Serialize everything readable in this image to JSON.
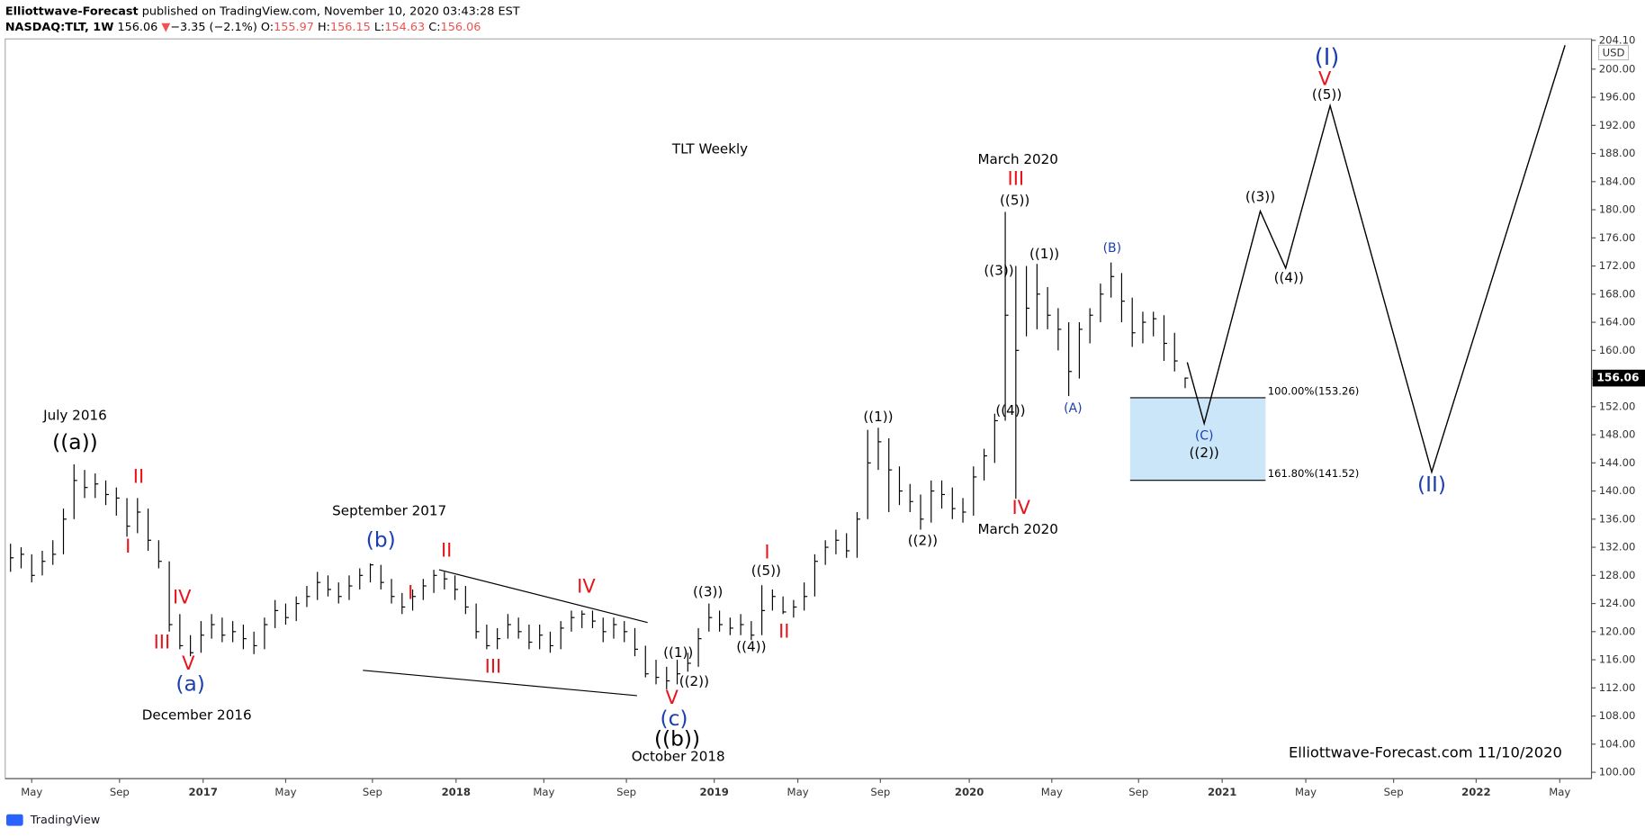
{
  "header": {
    "publisher": "Elliottwave-Forecast",
    "published": "published on TradingView.com, November 10, 2020 03:43:28 EST",
    "symbol": "NASDAQ:TLT, 1W",
    "last": "156.06",
    "arrow": "▼",
    "change": "−3.35 (−2.1%)",
    "o_label": "O:",
    "open": "155.97",
    "h_label": "H:",
    "high": "156.15",
    "l_label": "L:",
    "low": "154.63",
    "c_label": "C:",
    "close": "156.06"
  },
  "footer": {
    "brand": "TradingView"
  },
  "chart_data": {
    "type": "ohlc",
    "currency": "USD",
    "color": "#000000",
    "high": [
      132.5,
      132,
      131,
      131.5,
      133,
      137.5,
      143.8,
      143,
      142.5,
      141.5,
      140.5,
      139,
      139,
      137.5,
      133,
      130,
      122.5,
      119.5,
      121.5,
      122.5,
      122,
      121.5,
      121,
      120,
      122,
      124.5,
      124,
      125,
      126.5,
      128.5,
      128,
      127,
      128,
      129,
      129.7,
      129.5,
      127.5,
      125.5,
      126,
      127.5,
      128.8,
      128.5,
      128,
      126.5,
      124,
      121,
      120.5,
      122.5,
      122,
      121,
      121,
      120,
      121.5,
      123,
      123,
      123,
      122,
      122,
      121.5,
      120.5,
      118,
      116,
      115,
      116,
      117,
      120.5,
      124,
      123,
      122,
      122.5,
      121.5,
      126.6,
      126,
      125,
      124.5,
      127,
      131,
      133,
      134.5,
      134,
      137,
      148.7,
      149,
      147.5,
      143.5,
      141,
      139.5,
      141.5,
      141.5,
      140.5,
      139,
      143.5,
      146,
      151,
      179.7,
      172,
      172,
      172.3,
      169,
      166,
      164,
      164,
      166,
      169.5,
      172.5,
      171,
      167.5,
      165.5,
      165.5,
      165,
      162.5,
      156.15
    ],
    "low": [
      128.5,
      129,
      127,
      128,
      129.5,
      131,
      136,
      139,
      139,
      138,
      136.5,
      133.5,
      134,
      131.5,
      129,
      120,
      117.5,
      116.5,
      117,
      119,
      118.5,
      118.5,
      117.5,
      116.8,
      117.5,
      120.5,
      121,
      121.5,
      123.5,
      124.5,
      125,
      124,
      124.5,
      126,
      127,
      126,
      124,
      122.5,
      123,
      124.5,
      125.5,
      126,
      124.5,
      122.5,
      119,
      117.5,
      117.5,
      119,
      119,
      117.5,
      117.5,
      117,
      117.5,
      120,
      120.5,
      120.5,
      118.5,
      119,
      118.5,
      116.5,
      113.5,
      112.5,
      111.8,
      112.5,
      114.3,
      115,
      120,
      120,
      119.5,
      119.5,
      118.8,
      119.5,
      123,
      122.5,
      122,
      123,
      125,
      129.5,
      131,
      130.5,
      130.5,
      136,
      143,
      137,
      138,
      137,
      134.5,
      135.5,
      137.5,
      136,
      135.5,
      136.5,
      141.5,
      144,
      150,
      138.9,
      162,
      163,
      163,
      160,
      153.5,
      156,
      161,
      164,
      167.5,
      164,
      160.5,
      161,
      162,
      158.5,
      157,
      154.63
    ],
    "close": [
      130.5,
      131,
      128,
      130,
      131,
      136,
      141.5,
      140.5,
      141,
      139.5,
      139,
      135,
      137,
      133,
      130,
      121,
      118,
      117,
      119.5,
      121,
      119.5,
      120,
      119,
      118,
      121,
      123,
      122,
      124,
      125,
      127,
      126,
      125,
      126.5,
      128,
      129.5,
      127,
      125,
      123.5,
      125,
      126.5,
      128,
      127.5,
      126,
      123.5,
      120,
      118,
      119,
      121,
      120,
      118.5,
      119.5,
      118,
      120.5,
      122,
      122.5,
      121.5,
      120,
      121,
      120,
      117.5,
      114,
      113.5,
      113,
      114,
      115.5,
      119,
      122,
      121,
      120.5,
      121,
      119.5,
      123,
      125,
      122.8,
      123.5,
      125,
      130,
      132,
      133,
      131.5,
      136,
      144,
      147,
      143,
      140,
      138.5,
      136,
      140,
      139.5,
      137.5,
      137,
      142,
      145,
      150,
      165,
      160,
      166,
      168,
      165,
      163,
      157,
      163,
      165,
      168,
      170.5,
      167,
      162.5,
      164,
      164.5,
      161,
      158.5,
      156.06
    ],
    "xlim": [
      -0.5,
      149.4
    ],
    "ylim": [
      99.1,
      204.3
    ],
    "xticks": [
      {
        "value": 2,
        "label": "May"
      },
      {
        "value": 10.3,
        "label": "Sep"
      },
      18.2,
      {
        "value": 26,
        "label": "May"
      },
      {
        "value": 34.2,
        "label": "Sep"
      },
      42.1,
      {
        "value": 50.4,
        "label": "May"
      },
      {
        "value": 58.2,
        "label": "Sep"
      },
      66.5,
      {
        "value": 74.4,
        "label": "May"
      },
      {
        "value": 82.2,
        "label": "Sep"
      },
      90.6,
      {
        "value": 98.4,
        "label": "May"
      },
      {
        "value": 106.6,
        "label": "Sep"
      },
      114.5,
      {
        "value": 122.4,
        "label": "May"
      },
      {
        "value": 130.7,
        "label": "Sep"
      },
      138.5,
      {
        "value": 146.4,
        "label": "May"
      }
    ],
    "xtick_years": [
      "2017",
      "2018",
      "2019",
      "2020",
      "2021",
      "2022"
    ],
    "yticks": [
      {
        "value": 100,
        "label": "100.00"
      },
      {
        "value": 104,
        "label": "104.00"
      },
      {
        "value": 108,
        "label": "108.00"
      },
      {
        "value": 112,
        "label": "112.00"
      },
      {
        "value": 116,
        "label": "116.00"
      },
      {
        "value": 120,
        "label": "120.00"
      },
      {
        "value": 124,
        "label": "124.00"
      },
      {
        "value": 128,
        "label": "128.00"
      },
      {
        "value": 132,
        "label": "132.00"
      },
      {
        "value": 136,
        "label": "136.00"
      },
      {
        "value": 140,
        "label": "140.00"
      },
      {
        "value": 144,
        "label": "144.00"
      },
      {
        "value": 148,
        "label": "148.00"
      },
      {
        "value": 152,
        "label": "152.00"
      },
      {
        "value": 156,
        "label": "156.00"
      },
      {
        "value": 160,
        "label": "160.00"
      },
      {
        "value": 164,
        "label": "164.00"
      },
      {
        "value": 168,
        "label": "168.00"
      },
      {
        "value": 172,
        "label": "172.00"
      },
      {
        "value": 176,
        "label": "176.00"
      },
      {
        "value": 180,
        "label": "180.00"
      },
      {
        "value": 184,
        "label": "184.00"
      },
      {
        "value": 188,
        "label": "188.00"
      },
      {
        "value": 192,
        "label": "192.00"
      },
      {
        "value": 196,
        "label": "196.00"
      },
      {
        "value": 200,
        "label": "200.00"
      },
      {
        "value": 204.1,
        "label": "204.10"
      }
    ],
    "projection": {
      "x": [
        111.2,
        112.8,
        118.1,
        120.5,
        124.7,
        134.3,
        146.9
      ],
      "values": [
        158.3,
        149.6,
        179.8,
        171.7,
        194.8,
        142.7,
        203.4
      ]
    },
    "trendlines": [
      {
        "x": [
          40.5,
          60.2
        ],
        "values": [
          128.8,
          121.3
        ]
      },
      {
        "x": [
          33.3,
          59.2
        ],
        "values": [
          114.5,
          110.9
        ]
      }
    ],
    "fib": {
      "x": [
        105.8,
        118.6
      ],
      "color": "#bfe0f7",
      "levels": [
        {
          "value": 153.26,
          "label": "100.00%(153.26)"
        },
        {
          "value": 141.52,
          "label": "161.80%(141.52)"
        }
      ]
    },
    "annotations": [
      {
        "text": "TLT Weekly",
        "color": "#000000"
      },
      {
        "text": "July 2016",
        "color": "#000000"
      },
      {
        "text": "((a))",
        "color": "#000000"
      },
      {
        "text": "II",
        "color": "#e8141c"
      },
      {
        "text": "I",
        "color": "#e8141c"
      },
      {
        "text": "IV",
        "color": "#e8141c"
      },
      {
        "text": "III",
        "color": "#e8141c"
      },
      {
        "text": "V",
        "color": "#e8141c"
      },
      {
        "text": "(a)",
        "color": "#1b3fb0"
      },
      {
        "text": "December 2016",
        "color": "#000000"
      },
      {
        "text": "September 2017",
        "color": "#000000"
      },
      {
        "text": "(b)",
        "color": "#1b3fb0"
      },
      {
        "text": "II",
        "color": "#e8141c"
      },
      {
        "text": "I",
        "color": "#e8141c"
      },
      {
        "text": "IV",
        "color": "#e8141c"
      },
      {
        "text": "III",
        "color": "#e8141c"
      },
      {
        "text": "V",
        "color": "#e8141c"
      },
      {
        "text": "(c)",
        "color": "#1b3fb0"
      },
      {
        "text": "((b))",
        "color": "#000000"
      },
      {
        "text": "October 2018",
        "color": "#000000"
      },
      {
        "text": "((1))",
        "color": "#000000"
      },
      {
        "text": "((2))",
        "color": "#000000"
      },
      {
        "text": "((3))",
        "color": "#000000"
      },
      {
        "text": "((4))",
        "color": "#000000"
      },
      {
        "text": "((5))",
        "color": "#000000"
      },
      {
        "text": "I",
        "color": "#e8141c"
      },
      {
        "text": "II",
        "color": "#e8141c"
      },
      {
        "text": "((1))",
        "color": "#000000"
      },
      {
        "text": "((2))",
        "color": "#000000"
      },
      {
        "text": "((3))",
        "color": "#000000"
      },
      {
        "text": "((4))",
        "color": "#000000"
      },
      {
        "text": "IV",
        "color": "#e8141c"
      },
      {
        "text": "March 2020",
        "color": "#000000"
      },
      {
        "text": "March 2020",
        "color": "#000000"
      },
      {
        "text": "III",
        "color": "#e8141c"
      },
      {
        "text": "((5))",
        "color": "#000000"
      },
      {
        "text": "((1))",
        "color": "#000000"
      },
      {
        "text": "(B)",
        "color": "#1b3fb0"
      },
      {
        "text": "(A)",
        "color": "#1b3fb0"
      },
      {
        "text": "(C)",
        "color": "#1b3fb0"
      },
      {
        "text": "((2))",
        "color": "#000000"
      },
      {
        "text": "((3))",
        "color": "#000000"
      },
      {
        "text": "((4))",
        "color": "#000000"
      },
      {
        "text": "((5))",
        "color": "#000000"
      },
      {
        "text": "V",
        "color": "#e8141c"
      },
      {
        "text": "(I)",
        "color": "#1b3fb0"
      },
      {
        "text": "(II)",
        "color": "#1b3fb0"
      },
      {
        "text": "Elliottwave-Forecast.com 11/10/2020",
        "color": "#000000"
      }
    ]
  }
}
